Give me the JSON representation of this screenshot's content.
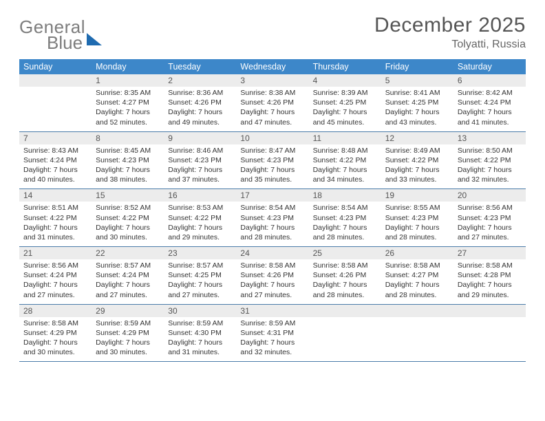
{
  "brand": {
    "word1": "General",
    "word2": "Blue"
  },
  "title": "December 2025",
  "location": "Tolyatti, Russia",
  "colors": {
    "header_bg": "#3d87c9",
    "header_text": "#ffffff",
    "daynum_bg": "#ececec",
    "row_border": "#4a7ba8",
    "logo_gray": "#7d7d7d",
    "logo_blue": "#1f6bb0",
    "body_text": "#333333"
  },
  "weekdays": [
    "Sunday",
    "Monday",
    "Tuesday",
    "Wednesday",
    "Thursday",
    "Friday",
    "Saturday"
  ],
  "weeks": [
    [
      {
        "blank": true
      },
      {
        "n": "1",
        "rise": "Sunrise: 8:35 AM",
        "set": "Sunset: 4:27 PM",
        "dl1": "Daylight: 7 hours",
        "dl2": "and 52 minutes."
      },
      {
        "n": "2",
        "rise": "Sunrise: 8:36 AM",
        "set": "Sunset: 4:26 PM",
        "dl1": "Daylight: 7 hours",
        "dl2": "and 49 minutes."
      },
      {
        "n": "3",
        "rise": "Sunrise: 8:38 AM",
        "set": "Sunset: 4:26 PM",
        "dl1": "Daylight: 7 hours",
        "dl2": "and 47 minutes."
      },
      {
        "n": "4",
        "rise": "Sunrise: 8:39 AM",
        "set": "Sunset: 4:25 PM",
        "dl1": "Daylight: 7 hours",
        "dl2": "and 45 minutes."
      },
      {
        "n": "5",
        "rise": "Sunrise: 8:41 AM",
        "set": "Sunset: 4:25 PM",
        "dl1": "Daylight: 7 hours",
        "dl2": "and 43 minutes."
      },
      {
        "n": "6",
        "rise": "Sunrise: 8:42 AM",
        "set": "Sunset: 4:24 PM",
        "dl1": "Daylight: 7 hours",
        "dl2": "and 41 minutes."
      }
    ],
    [
      {
        "n": "7",
        "rise": "Sunrise: 8:43 AM",
        "set": "Sunset: 4:24 PM",
        "dl1": "Daylight: 7 hours",
        "dl2": "and 40 minutes."
      },
      {
        "n": "8",
        "rise": "Sunrise: 8:45 AM",
        "set": "Sunset: 4:23 PM",
        "dl1": "Daylight: 7 hours",
        "dl2": "and 38 minutes."
      },
      {
        "n": "9",
        "rise": "Sunrise: 8:46 AM",
        "set": "Sunset: 4:23 PM",
        "dl1": "Daylight: 7 hours",
        "dl2": "and 37 minutes."
      },
      {
        "n": "10",
        "rise": "Sunrise: 8:47 AM",
        "set": "Sunset: 4:23 PM",
        "dl1": "Daylight: 7 hours",
        "dl2": "and 35 minutes."
      },
      {
        "n": "11",
        "rise": "Sunrise: 8:48 AM",
        "set": "Sunset: 4:22 PM",
        "dl1": "Daylight: 7 hours",
        "dl2": "and 34 minutes."
      },
      {
        "n": "12",
        "rise": "Sunrise: 8:49 AM",
        "set": "Sunset: 4:22 PM",
        "dl1": "Daylight: 7 hours",
        "dl2": "and 33 minutes."
      },
      {
        "n": "13",
        "rise": "Sunrise: 8:50 AM",
        "set": "Sunset: 4:22 PM",
        "dl1": "Daylight: 7 hours",
        "dl2": "and 32 minutes."
      }
    ],
    [
      {
        "n": "14",
        "rise": "Sunrise: 8:51 AM",
        "set": "Sunset: 4:22 PM",
        "dl1": "Daylight: 7 hours",
        "dl2": "and 31 minutes."
      },
      {
        "n": "15",
        "rise": "Sunrise: 8:52 AM",
        "set": "Sunset: 4:22 PM",
        "dl1": "Daylight: 7 hours",
        "dl2": "and 30 minutes."
      },
      {
        "n": "16",
        "rise": "Sunrise: 8:53 AM",
        "set": "Sunset: 4:22 PM",
        "dl1": "Daylight: 7 hours",
        "dl2": "and 29 minutes."
      },
      {
        "n": "17",
        "rise": "Sunrise: 8:54 AM",
        "set": "Sunset: 4:23 PM",
        "dl1": "Daylight: 7 hours",
        "dl2": "and 28 minutes."
      },
      {
        "n": "18",
        "rise": "Sunrise: 8:54 AM",
        "set": "Sunset: 4:23 PM",
        "dl1": "Daylight: 7 hours",
        "dl2": "and 28 minutes."
      },
      {
        "n": "19",
        "rise": "Sunrise: 8:55 AM",
        "set": "Sunset: 4:23 PM",
        "dl1": "Daylight: 7 hours",
        "dl2": "and 28 minutes."
      },
      {
        "n": "20",
        "rise": "Sunrise: 8:56 AM",
        "set": "Sunset: 4:23 PM",
        "dl1": "Daylight: 7 hours",
        "dl2": "and 27 minutes."
      }
    ],
    [
      {
        "n": "21",
        "rise": "Sunrise: 8:56 AM",
        "set": "Sunset: 4:24 PM",
        "dl1": "Daylight: 7 hours",
        "dl2": "and 27 minutes."
      },
      {
        "n": "22",
        "rise": "Sunrise: 8:57 AM",
        "set": "Sunset: 4:24 PM",
        "dl1": "Daylight: 7 hours",
        "dl2": "and 27 minutes."
      },
      {
        "n": "23",
        "rise": "Sunrise: 8:57 AM",
        "set": "Sunset: 4:25 PM",
        "dl1": "Daylight: 7 hours",
        "dl2": "and 27 minutes."
      },
      {
        "n": "24",
        "rise": "Sunrise: 8:58 AM",
        "set": "Sunset: 4:26 PM",
        "dl1": "Daylight: 7 hours",
        "dl2": "and 27 minutes."
      },
      {
        "n": "25",
        "rise": "Sunrise: 8:58 AM",
        "set": "Sunset: 4:26 PM",
        "dl1": "Daylight: 7 hours",
        "dl2": "and 28 minutes."
      },
      {
        "n": "26",
        "rise": "Sunrise: 8:58 AM",
        "set": "Sunset: 4:27 PM",
        "dl1": "Daylight: 7 hours",
        "dl2": "and 28 minutes."
      },
      {
        "n": "27",
        "rise": "Sunrise: 8:58 AM",
        "set": "Sunset: 4:28 PM",
        "dl1": "Daylight: 7 hours",
        "dl2": "and 29 minutes."
      }
    ],
    [
      {
        "n": "28",
        "rise": "Sunrise: 8:58 AM",
        "set": "Sunset: 4:29 PM",
        "dl1": "Daylight: 7 hours",
        "dl2": "and 30 minutes."
      },
      {
        "n": "29",
        "rise": "Sunrise: 8:59 AM",
        "set": "Sunset: 4:29 PM",
        "dl1": "Daylight: 7 hours",
        "dl2": "and 30 minutes."
      },
      {
        "n": "30",
        "rise": "Sunrise: 8:59 AM",
        "set": "Sunset: 4:30 PM",
        "dl1": "Daylight: 7 hours",
        "dl2": "and 31 minutes."
      },
      {
        "n": "31",
        "rise": "Sunrise: 8:59 AM",
        "set": "Sunset: 4:31 PM",
        "dl1": "Daylight: 7 hours",
        "dl2": "and 32 minutes."
      },
      {
        "blank": true
      },
      {
        "blank": true
      },
      {
        "blank": true
      }
    ]
  ]
}
